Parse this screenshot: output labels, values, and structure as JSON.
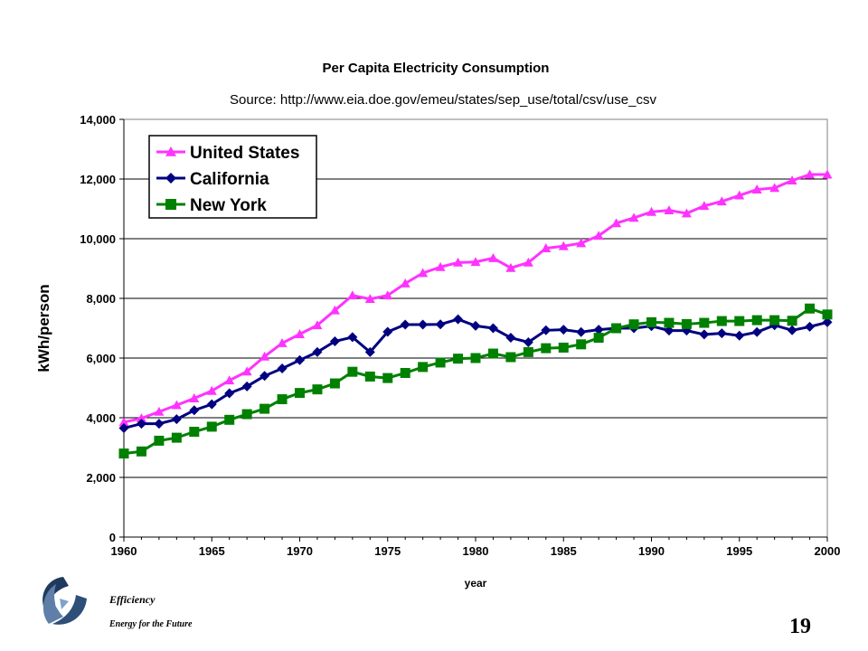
{
  "slide": {
    "brand_line_1": "Efficiency",
    "brand_line_2": "Energy for the Future",
    "page_number": "19"
  },
  "chart_data": {
    "type": "line",
    "title": "Per Capita Electricity Consumption",
    "subtitle": "Source:  http://www.eia.doe.gov/emeu/states/sep_use/total/csv/use_csv",
    "xlabel": "year",
    "ylabel": "kWh/person",
    "xlim": [
      1960,
      2000
    ],
    "ylim": [
      0,
      14000
    ],
    "x_ticks": [
      1960,
      1965,
      1970,
      1975,
      1980,
      1985,
      1990,
      1995,
      2000
    ],
    "y_ticks": [
      0,
      2000,
      4000,
      6000,
      8000,
      10000,
      12000,
      14000
    ],
    "y_tick_labels": [
      "0",
      "2,000",
      "4,000",
      "6,000",
      "8,000",
      "10,000",
      "12,000",
      "14,000"
    ],
    "grid": "horizontal",
    "legend_position": "top-left",
    "x": [
      1960,
      1961,
      1962,
      1963,
      1964,
      1965,
      1966,
      1967,
      1968,
      1969,
      1970,
      1971,
      1972,
      1973,
      1974,
      1975,
      1976,
      1977,
      1978,
      1979,
      1980,
      1981,
      1982,
      1983,
      1984,
      1985,
      1986,
      1987,
      1988,
      1989,
      1990,
      1991,
      1992,
      1993,
      1994,
      1995,
      1996,
      1997,
      1998,
      1999,
      2000
    ],
    "series": [
      {
        "name": "United States",
        "color": "#ff33ff",
        "marker": "triangle",
        "values": [
          3850,
          3980,
          4200,
          4420,
          4650,
          4900,
          5250,
          5550,
          6050,
          6500,
          6800,
          7100,
          7600,
          8100,
          7980,
          8100,
          8500,
          8850,
          9050,
          9200,
          9220,
          9350,
          9020,
          9200,
          9680,
          9750,
          9850,
          10100,
          10520,
          10700,
          10900,
          10950,
          10850,
          11100,
          11250,
          11450,
          11650,
          11700,
          11950,
          12150,
          12150
        ]
      },
      {
        "name": "California",
        "color": "#000080",
        "marker": "diamond",
        "values": [
          3650,
          3800,
          3800,
          3950,
          4250,
          4450,
          4820,
          5050,
          5400,
          5650,
          5930,
          6200,
          6560,
          6700,
          6200,
          6880,
          7120,
          7120,
          7130,
          7300,
          7080,
          7000,
          6680,
          6530,
          6930,
          6950,
          6870,
          6950,
          7000,
          7000,
          7070,
          6920,
          6920,
          6790,
          6830,
          6750,
          6870,
          7100,
          6930,
          7050,
          7200
        ]
      },
      {
        "name": "New York",
        "color": "#008000",
        "marker": "square",
        "values": [
          2800,
          2870,
          3230,
          3330,
          3530,
          3700,
          3930,
          4120,
          4300,
          4620,
          4830,
          4950,
          5150,
          5540,
          5380,
          5330,
          5500,
          5700,
          5850,
          5980,
          6000,
          6150,
          6030,
          6200,
          6330,
          6350,
          6460,
          6680,
          7000,
          7130,
          7200,
          7180,
          7140,
          7180,
          7240,
          7240,
          7270,
          7270,
          7250,
          7660,
          7460
        ]
      }
    ]
  }
}
